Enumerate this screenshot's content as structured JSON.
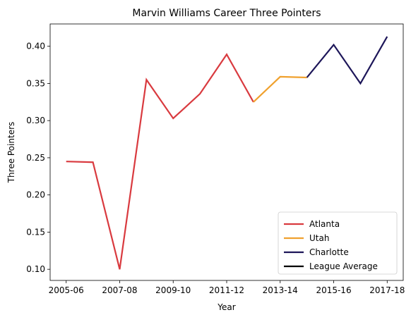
{
  "chart_data": {
    "type": "line",
    "title": "Marvin Williams Career Three Pointers",
    "xlabel": "Year",
    "ylabel": "Three Pointers",
    "x": [
      "2005-06",
      "2006-07",
      "2007-08",
      "2008-09",
      "2009-10",
      "2010-11",
      "2011-12",
      "2012-13",
      "2013-14",
      "2014-15",
      "2015-16",
      "2016-17",
      "2017-18"
    ],
    "x_tick_labels": [
      "2005-06",
      "2007-08",
      "2009-10",
      "2011-12",
      "2013-14",
      "2015-16",
      "2017-18"
    ],
    "ylim": [
      0.085,
      0.43
    ],
    "y_ticks": [
      0.1,
      0.15,
      0.2,
      0.25,
      0.3,
      0.35,
      0.4
    ],
    "y_tick_labels": [
      "0.10",
      "0.15",
      "0.20",
      "0.25",
      "0.30",
      "0.35",
      "0.40"
    ],
    "grid": false,
    "legend_position": "lower-right",
    "series": [
      {
        "name": "Atlanta",
        "color": "#d93a3f",
        "points": [
          {
            "x": "2005-06",
            "y": 0.245
          },
          {
            "x": "2006-07",
            "y": 0.244
          },
          {
            "x": "2007-08",
            "y": 0.1
          },
          {
            "x": "2008-09",
            "y": 0.355
          },
          {
            "x": "2009-10",
            "y": 0.303
          },
          {
            "x": "2010-11",
            "y": 0.336
          },
          {
            "x": "2011-12",
            "y": 0.389
          },
          {
            "x": "2012-13",
            "y": 0.325
          }
        ]
      },
      {
        "name": "Utah",
        "color": "#f0a12e",
        "points": [
          {
            "x": "2012-13",
            "y": 0.325
          },
          {
            "x": "2013-14",
            "y": 0.359
          },
          {
            "x": "2014-15",
            "y": 0.358
          }
        ]
      },
      {
        "name": "Charlotte",
        "color": "#1d1659",
        "points": [
          {
            "x": "2014-15",
            "y": 0.358
          },
          {
            "x": "2015-16",
            "y": 0.402
          },
          {
            "x": "2016-17",
            "y": 0.35
          },
          {
            "x": "2017-18",
            "y": 0.413
          }
        ]
      },
      {
        "name": "League Average",
        "color": "#000000",
        "points": []
      }
    ]
  }
}
